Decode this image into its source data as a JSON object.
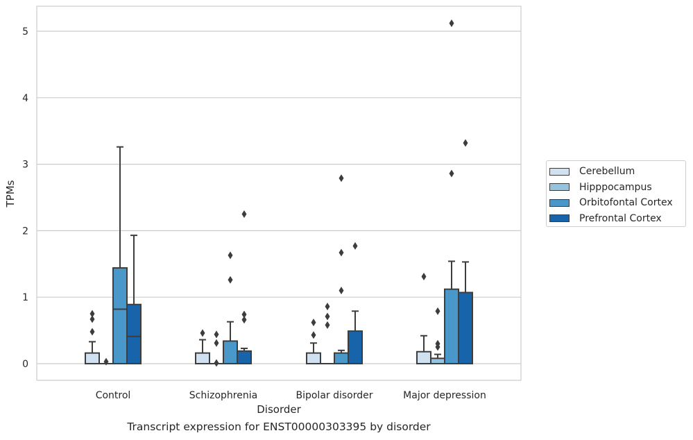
{
  "caption": "Transcript expression for ENST00000303395 by disorder",
  "chart_data": {
    "type": "box",
    "title": "",
    "xlabel": "Disorder",
    "ylabel": "TPMs",
    "ylim": [
      -0.25,
      5.38
    ],
    "yticks": [
      0,
      1,
      2,
      3,
      4,
      5
    ],
    "grid": "horizontal",
    "legend_position": "right",
    "categories": [
      "Control",
      "Schizophrenia",
      "Bipolar disorder",
      "Major depression"
    ],
    "series": [
      {
        "name": "Cerebellum",
        "color": "#d0e1f2",
        "boxes": [
          {
            "q1": 0.0,
            "median": 0.0,
            "q3": 0.16,
            "whisker_low": 0.0,
            "whisker_high": 0.33,
            "outliers": [
              0.75,
              0.67,
              0.48
            ]
          },
          {
            "q1": 0.0,
            "median": 0.0,
            "q3": 0.16,
            "whisker_low": 0.0,
            "whisker_high": 0.36,
            "outliers": [
              0.46
            ]
          },
          {
            "q1": 0.0,
            "median": 0.0,
            "q3": 0.16,
            "whisker_low": 0.0,
            "whisker_high": 0.31,
            "outliers": [
              0.62,
              0.43
            ]
          },
          {
            "q1": 0.0,
            "median": 0.0,
            "q3": 0.18,
            "whisker_low": 0.0,
            "whisker_high": 0.42,
            "outliers": [
              1.31
            ]
          }
        ]
      },
      {
        "name": "Hipppocampus",
        "color": "#94c4df",
        "boxes": [
          {
            "q1": 0.0,
            "median": 0.0,
            "q3": 0.0,
            "whisker_low": 0.0,
            "whisker_high": 0.0,
            "outliers": [
              0.03
            ]
          },
          {
            "q1": 0.0,
            "median": 0.0,
            "q3": 0.0,
            "whisker_low": 0.0,
            "whisker_high": 0.0,
            "outliers": [
              0.44,
              0.31,
              0.01
            ]
          },
          {
            "q1": 0.0,
            "median": 0.0,
            "q3": 0.0,
            "whisker_low": 0.0,
            "whisker_high": 0.0,
            "outliers": [
              0.86,
              0.71,
              0.58
            ]
          },
          {
            "q1": 0.0,
            "median": 0.0,
            "q3": 0.08,
            "whisker_low": 0.0,
            "whisker_high": 0.14,
            "outliers": [
              0.79,
              0.3,
              0.25
            ]
          }
        ]
      },
      {
        "name": "Orbitofontal Cortex",
        "color": "#4a98c9",
        "boxes": [
          {
            "q1": 0.0,
            "median": 0.82,
            "q3": 1.44,
            "whisker_low": 0.0,
            "whisker_high": 3.26,
            "outliers": []
          },
          {
            "q1": 0.0,
            "median": 0.0,
            "q3": 0.34,
            "whisker_low": 0.0,
            "whisker_high": 0.63,
            "outliers": [
              1.63,
              1.26
            ]
          },
          {
            "q1": 0.0,
            "median": 0.0,
            "q3": 0.16,
            "whisker_low": 0.0,
            "whisker_high": 0.2,
            "outliers": [
              2.79,
              1.67,
              1.1
            ]
          },
          {
            "q1": 0.0,
            "median": 0.0,
            "q3": 1.12,
            "whisker_low": 0.0,
            "whisker_high": 1.54,
            "outliers": [
              5.12,
              2.86
            ]
          }
        ]
      },
      {
        "name": "Prefrontal Cortex",
        "color": "#1764ab",
        "boxes": [
          {
            "q1": 0.0,
            "median": 0.41,
            "q3": 0.89,
            "whisker_low": 0.0,
            "whisker_high": 1.93,
            "outliers": []
          },
          {
            "q1": 0.0,
            "median": 0.0,
            "q3": 0.19,
            "whisker_low": 0.0,
            "whisker_high": 0.23,
            "outliers": [
              2.25,
              0.74,
              0.66
            ]
          },
          {
            "q1": 0.0,
            "median": 0.0,
            "q3": 0.49,
            "whisker_low": 0.0,
            "whisker_high": 0.79,
            "outliers": [
              1.77
            ]
          },
          {
            "q1": 0.0,
            "median": 0.0,
            "q3": 1.07,
            "whisker_low": 0.0,
            "whisker_high": 1.53,
            "outliers": [
              3.32
            ]
          }
        ]
      }
    ]
  }
}
